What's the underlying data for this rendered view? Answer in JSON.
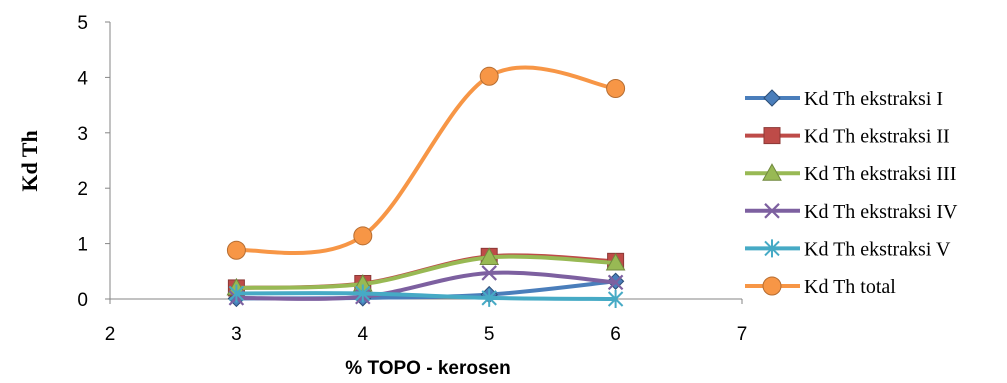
{
  "chart_data": {
    "type": "line",
    "xlabel": "% TOPO - kerosen",
    "ylabel": "Kd Th",
    "xlim": [
      2,
      7
    ],
    "ylim": [
      0,
      5
    ],
    "x_ticks": [
      "2",
      "3",
      "4",
      "5",
      "6",
      "7"
    ],
    "y_ticks": [
      "0",
      "1",
      "2",
      "3",
      "4",
      "5"
    ],
    "grid": false,
    "legend_position": "right",
    "x": [
      3,
      4,
      5,
      6
    ],
    "series": [
      {
        "name": "Kd Th ekstraksi I",
        "values": [
          0.01,
          0.02,
          0.08,
          0.32
        ],
        "color": "#4a7ebb",
        "marker": "diamond"
      },
      {
        "name": "Kd Th ekstraksi II",
        "values": [
          0.2,
          0.28,
          0.77,
          0.68
        ],
        "color": "#be4b48",
        "marker": "square"
      },
      {
        "name": "Kd Th ekstraksi III",
        "values": [
          0.2,
          0.27,
          0.75,
          0.65
        ],
        "color": "#98b954",
        "marker": "triangle"
      },
      {
        "name": "Kd Th ekstraksi IV",
        "values": [
          0.02,
          0.04,
          0.47,
          0.3
        ],
        "color": "#7d60a0",
        "marker": "x"
      },
      {
        "name": "Kd Th ekstraksi V",
        "values": [
          0.1,
          0.1,
          0.02,
          0.0
        ],
        "color": "#46aac5",
        "marker": "star"
      },
      {
        "name": "Kd Th total",
        "values": [
          0.88,
          1.14,
          4.02,
          3.8
        ],
        "color": "#f79646",
        "marker": "circle"
      }
    ]
  }
}
